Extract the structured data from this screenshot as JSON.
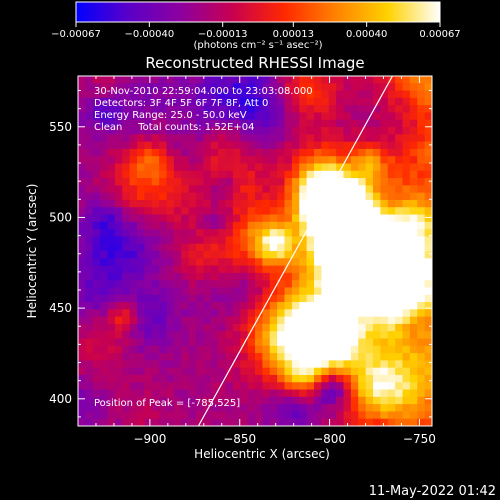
{
  "chart_data": {
    "type": "heatmap",
    "title": "Reconstructed RHESSI Image",
    "xlabel": "Heliocentric X (arcsec)",
    "ylabel": "Heliocentric Y (arcsec)",
    "xlim": [
      -940,
      -743
    ],
    "ylim": [
      385,
      578
    ],
    "x_ticks": [
      -900,
      -850,
      -800,
      -750
    ],
    "x_tick_labels": [
      "−900",
      "−850",
      "−800",
      "−750"
    ],
    "y_ticks": [
      400,
      450,
      500,
      550
    ],
    "y_tick_labels": [
      "400",
      "450",
      "500",
      "550"
    ],
    "colorbar": {
      "min": -0.00067,
      "max": 0.00067,
      "ticks": [
        -0.00067,
        -0.0004,
        -0.00013,
        0.00013,
        0.0004,
        0.00067
      ],
      "tick_labels": [
        "−0.00067",
        "−0.00040",
        "−0.00013",
        "0.00013",
        "0.00040",
        "0.00067"
      ],
      "unit_label": "(photons cm⁻² s⁻¹ asec⁻²)",
      "colors": [
        "#0000ff",
        "#5a00c8",
        "#8c00a0",
        "#c80050",
        "#ff2800",
        "#ff8200",
        "#ffd200",
        "#ffffff"
      ]
    },
    "info_lines": [
      "30-Nov-2010 22:59:04.000 to 23:03:08.000",
      "Detectors: 3F 4F 5F 6F 7F 8F, Att 0",
      "Energy Range: 25.0 - 50.0 keV",
      "Clean     Total counts: 1.52E+04"
    ],
    "peak_label": "Position of Peak = [-785,525]",
    "peak_position": [
      -785,
      525
    ],
    "limb_line": {
      "x": [
        -873,
        -765
      ],
      "y": [
        385,
        578
      ]
    },
    "grid": false,
    "legend": "none"
  },
  "timestamp": "11-May-2022 01:42",
  "colors": {
    "background": "#000000",
    "foreground": "#ffffff"
  }
}
